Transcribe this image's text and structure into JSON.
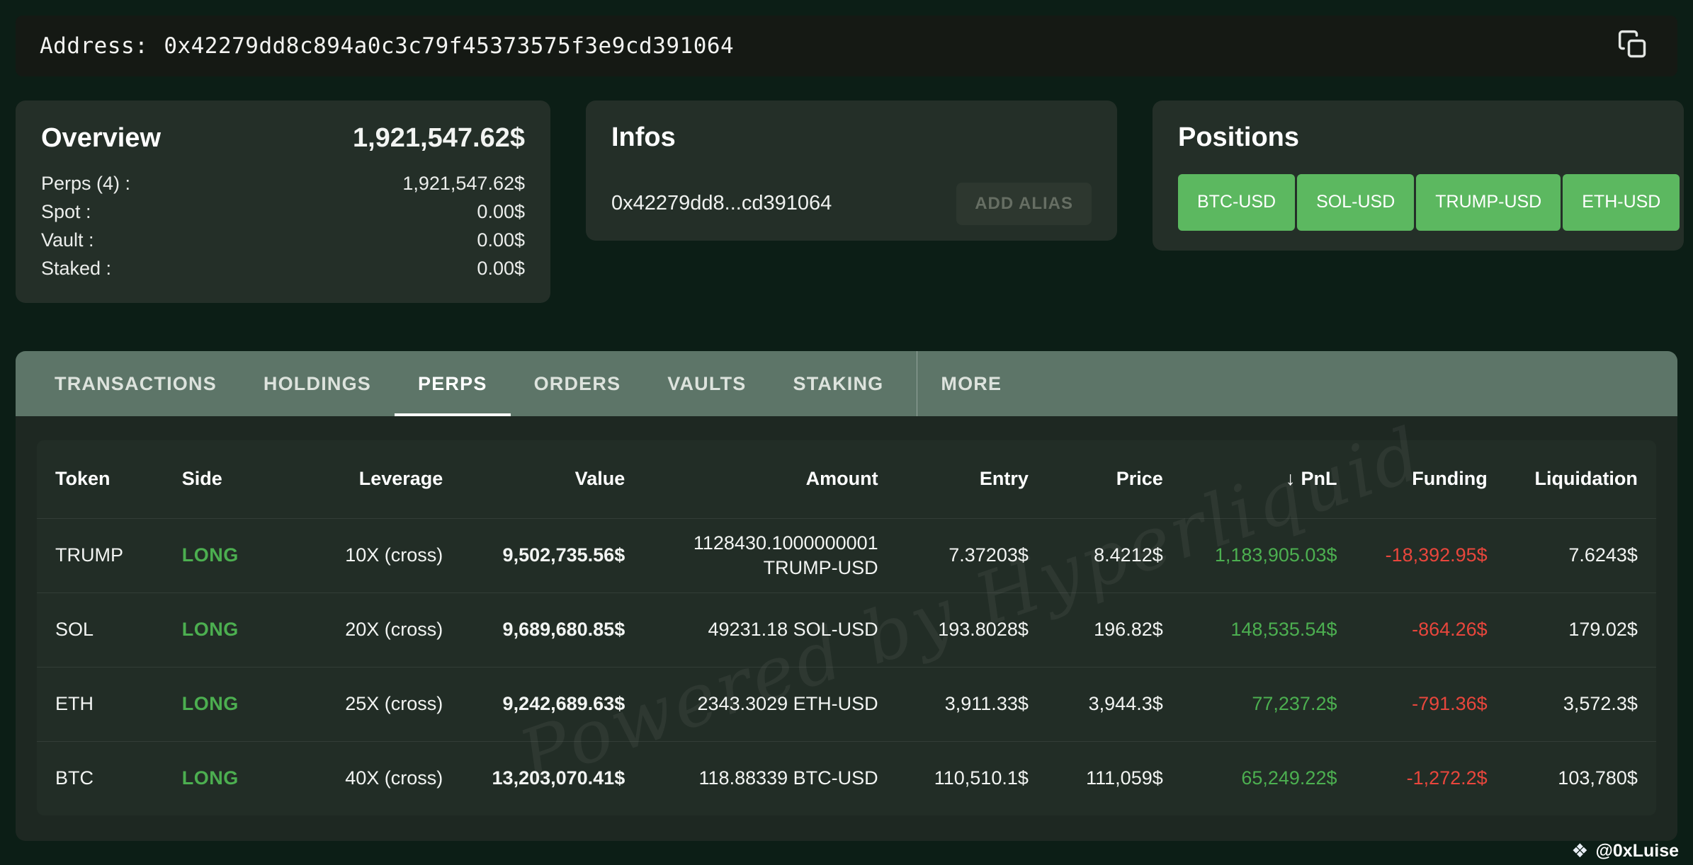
{
  "address_bar": {
    "label": "Address:",
    "address": "0x42279dd8c894a0c3c79f45373575f3e9cd391064"
  },
  "overview": {
    "title": "Overview",
    "total": "1,921,547.62$",
    "rows": [
      {
        "label": "Perps (4) :",
        "value": "1,921,547.62$"
      },
      {
        "label": "Spot :",
        "value": "0.00$"
      },
      {
        "label": "Vault :",
        "value": "0.00$"
      },
      {
        "label": "Staked :",
        "value": "0.00$"
      }
    ]
  },
  "infos": {
    "title": "Infos",
    "short_address": "0x42279dd8...cd391064",
    "add_alias_label": "ADD ALIAS"
  },
  "positions": {
    "title": "Positions",
    "items": [
      "BTC-USD",
      "SOL-USD",
      "TRUMP-USD",
      "ETH-USD"
    ]
  },
  "tabs": [
    {
      "label": "TRANSACTIONS",
      "active": false
    },
    {
      "label": "HOLDINGS",
      "active": false
    },
    {
      "label": "PERPS",
      "active": true
    },
    {
      "label": "ORDERS",
      "active": false
    },
    {
      "label": "VAULTS",
      "active": false
    },
    {
      "label": "STAKING",
      "active": false
    },
    {
      "label": "MORE",
      "active": false,
      "divider_before": true
    }
  ],
  "table": {
    "sort_icon": "↓",
    "sort_key": "pnl",
    "columns": [
      {
        "key": "token",
        "label": "Token"
      },
      {
        "key": "side",
        "label": "Side"
      },
      {
        "key": "leverage",
        "label": "Leverage"
      },
      {
        "key": "value",
        "label": "Value"
      },
      {
        "key": "amount",
        "label": "Amount"
      },
      {
        "key": "entry",
        "label": "Entry"
      },
      {
        "key": "price",
        "label": "Price"
      },
      {
        "key": "pnl",
        "label": "PnL"
      },
      {
        "key": "funding",
        "label": "Funding"
      },
      {
        "key": "liquidation",
        "label": "Liquidation"
      }
    ],
    "rows": [
      {
        "token": "TRUMP",
        "side": "LONG",
        "leverage": "10X (cross)",
        "value": "9,502,735.56$",
        "amount": "1128430.1000000001 TRUMP-USD",
        "entry": "7.37203$",
        "price": "8.4212$",
        "pnl": "1,183,905.03$",
        "funding": "-18,392.95$",
        "liquidation": "7.6243$"
      },
      {
        "token": "SOL",
        "side": "LONG",
        "leverage": "20X (cross)",
        "value": "9,689,680.85$",
        "amount": "49231.18 SOL-USD",
        "entry": "193.8028$",
        "price": "196.82$",
        "pnl": "148,535.54$",
        "funding": "-864.26$",
        "liquidation": "179.02$"
      },
      {
        "token": "ETH",
        "side": "LONG",
        "leverage": "25X (cross)",
        "value": "9,242,689.63$",
        "amount": "2343.3029 ETH-USD",
        "entry": "3,911.33$",
        "price": "3,944.3$",
        "pnl": "77,237.2$",
        "funding": "-791.36$",
        "liquidation": "3,572.3$"
      },
      {
        "token": "BTC",
        "side": "LONG",
        "leverage": "40X (cross)",
        "value": "13,203,070.41$",
        "amount": "118.88339 BTC-USD",
        "entry": "110,510.1$",
        "price": "111,059$",
        "pnl": "65,249.22$",
        "funding": "-1,272.2$",
        "liquidation": "103,780$"
      }
    ]
  },
  "watermark": "Powered by Hyperliquid",
  "footer": {
    "logo": "❖",
    "credit": "@0xLuise"
  },
  "colors": {
    "green": "#4caf50",
    "red": "#e8463c",
    "button_green": "#5cb860"
  }
}
